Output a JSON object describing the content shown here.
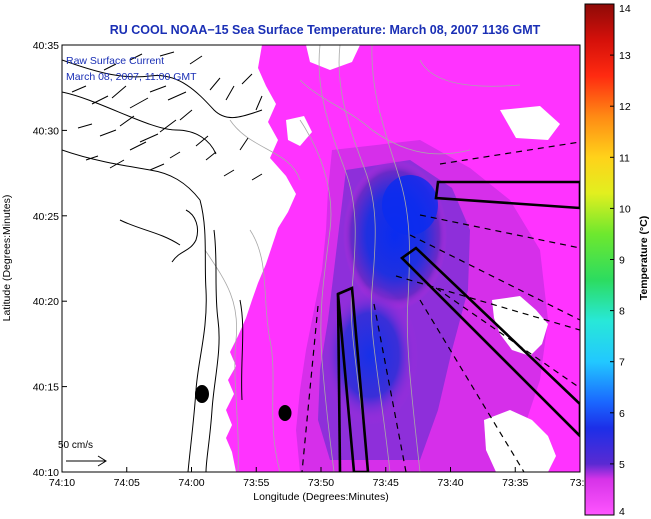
{
  "title": "RU COOL  NOAA−15  Sea Surface Temperature:  March 08, 2007 1136 GMT",
  "inset": {
    "line1": "Raw Surface Current",
    "line2": "March 08, 2007, 11:00 GMT"
  },
  "axes": {
    "xlabel": "Longitude (Degrees:Minutes)",
    "ylabel": "Latitude (Degrees:Minutes)",
    "x_ticks": [
      "74:10",
      "74:05",
      "74:00",
      "73:55",
      "73:50",
      "73:45",
      "73:40",
      "73:35",
      "73:3"
    ],
    "y_ticks": [
      "40:35",
      "40:30",
      "40:25",
      "40:20",
      "40:15",
      "40:10"
    ]
  },
  "scale_arrow": {
    "label": "50 cm/s"
  },
  "colorbar": {
    "label": "Temperature (°C)",
    "ticks": [
      "14",
      "13",
      "12",
      "11",
      "10",
      "9",
      "8",
      "7",
      "6",
      "5",
      "4"
    ],
    "min": 4,
    "max": 14
  },
  "colors": {
    "title_text": "#1a2fb5",
    "sst_warm": "#ff33ff",
    "sst_cold": "#0a2cf0",
    "land": "#ffffff"
  }
}
